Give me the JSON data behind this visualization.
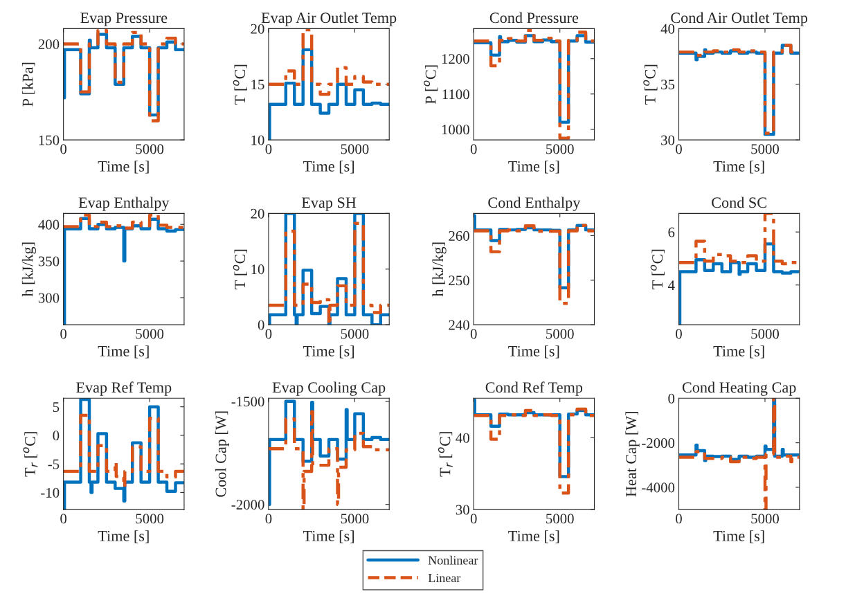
{
  "chart_data": [
    {
      "type": "step",
      "title": "Evap Pressure",
      "xlabel": "Time [s]",
      "ylabel": "P [kPa]",
      "xlim": [
        0,
        7000
      ],
      "xticks": [
        0,
        5000
      ],
      "ylim": [
        150,
        208
      ],
      "yticks": [
        150,
        200
      ],
      "grid": false,
      "series": [
        {
          "color": "#0072bd",
          "line_style": "solid",
          "x": [
            0,
            60,
            1000,
            1500,
            1560,
            2000,
            2500,
            3000,
            3500,
            4000,
            4500,
            5000,
            5500,
            6000,
            6500,
            7000
          ],
          "values": [
            172,
            197,
            174,
            202,
            198,
            205,
            198,
            179,
            198,
            204,
            198,
            163,
            198,
            201,
            197,
            197
          ]
        },
        {
          "color": "#d95319",
          "line_style": "dashed",
          "x": [
            0,
            1000,
            1500,
            2000,
            2500,
            3000,
            3500,
            4000,
            4500,
            5000,
            5500,
            6000,
            6500,
            7000
          ],
          "values": [
            200,
            175,
            200,
            207,
            200,
            180,
            200,
            206,
            200,
            160,
            200,
            203,
            200,
            200
          ]
        }
      ]
    },
    {
      "type": "step",
      "title": "Evap Air Outlet Temp",
      "xlabel": "Time [s]",
      "ylabel": "T [$^{o}$C]",
      "xlim": [
        0,
        7000
      ],
      "xticks": [
        0,
        5000
      ],
      "ylim": [
        10,
        20
      ],
      "yticks": [
        10,
        15,
        20
      ],
      "grid": false,
      "series": [
        {
          "color": "#0072bd",
          "line_style": "solid",
          "x": [
            0,
            60,
            1000,
            1500,
            2000,
            2500,
            3000,
            3500,
            4000,
            4500,
            5000,
            5500,
            6000,
            6500,
            7000
          ],
          "values": [
            10,
            13.2,
            15.1,
            13.2,
            18.1,
            13.2,
            12.4,
            13.2,
            15,
            13.2,
            14.5,
            13.2,
            13.3,
            13.2,
            13.2
          ]
        },
        {
          "color": "#d95319",
          "line_style": "dashed",
          "x": [
            0,
            1000,
            1500,
            2000,
            2500,
            3000,
            3500,
            4000,
            4500,
            5000,
            5500,
            6000,
            6500,
            7000
          ],
          "values": [
            15,
            16.2,
            15,
            19.9,
            15,
            14.1,
            15,
            16.5,
            15,
            15.7,
            15.2,
            15,
            15,
            15
          ]
        }
      ]
    },
    {
      "type": "step",
      "title": "Cond Pressure",
      "xlabel": "Time [s]",
      "ylabel": "P [$^{o}$C]",
      "xlim": [
        0,
        7000
      ],
      "xticks": [
        0,
        5000
      ],
      "ylim": [
        970,
        1285
      ],
      "yticks": [
        1000,
        1100,
        1200
      ],
      "grid": false,
      "series": [
        {
          "color": "#0072bd",
          "line_style": "solid",
          "x": [
            0,
            1000,
            1500,
            1560,
            2000,
            2500,
            3000,
            3500,
            4000,
            4500,
            5000,
            5500,
            6000,
            6500,
            7000
          ],
          "values": [
            1245,
            1210,
            1262,
            1248,
            1252,
            1247,
            1265,
            1248,
            1253,
            1248,
            1020,
            1250,
            1265,
            1247,
            1247
          ]
        },
        {
          "color": "#d95319",
          "line_style": "dashed",
          "x": [
            0,
            1000,
            1500,
            2000,
            2500,
            3000,
            3500,
            4000,
            4500,
            5000,
            5500,
            6000,
            6500,
            7000
          ],
          "values": [
            1250,
            1180,
            1252,
            1257,
            1250,
            1280,
            1252,
            1258,
            1250,
            975,
            1252,
            1275,
            1250,
            1250
          ]
        }
      ]
    },
    {
      "type": "step",
      "title": "Cond Air Outlet Temp",
      "xlabel": "Time [s]",
      "ylabel": "T [$^{o}$C]",
      "xlim": [
        0,
        7000
      ],
      "xticks": [
        0,
        5000
      ],
      "ylim": [
        30,
        40
      ],
      "yticks": [
        30,
        35,
        40
      ],
      "grid": false,
      "series": [
        {
          "color": "#0072bd",
          "line_style": "solid",
          "x": [
            0,
            1000,
            1060,
            1500,
            1560,
            2000,
            2500,
            3000,
            3500,
            4000,
            4500,
            5000,
            5500,
            6000,
            6500,
            7000
          ],
          "values": [
            37.8,
            37.2,
            37.5,
            38.1,
            37.8,
            37.9,
            37.8,
            38,
            37.8,
            37.9,
            37.8,
            30.5,
            37.8,
            38.5,
            37.8,
            37.8
          ]
        },
        {
          "color": "#d95319",
          "line_style": "dashed",
          "x": [
            0,
            1000,
            1500,
            2000,
            2500,
            3000,
            3500,
            4000,
            4500,
            5000,
            5500,
            6000,
            6500,
            7000
          ],
          "values": [
            37.9,
            37.6,
            37.9,
            38,
            37.9,
            38.1,
            37.9,
            38,
            37.9,
            30.6,
            37.9,
            38.5,
            37.9,
            37.9
          ]
        }
      ]
    },
    {
      "type": "step",
      "title": "Evap Enthalpy",
      "xlabel": "Time [s]",
      "ylabel": "h [kJ/kg]",
      "xlim": [
        0,
        7000
      ],
      "xticks": [
        0,
        5000
      ],
      "ylim": [
        263,
        415
      ],
      "yticks": [
        300,
        350,
        400
      ],
      "grid": false,
      "series": [
        {
          "color": "#0072bd",
          "line_style": "solid",
          "x": [
            0,
            60,
            1000,
            1500,
            2000,
            2500,
            3000,
            3500,
            3560,
            4000,
            4500,
            5000,
            5500,
            6000,
            6500,
            7000
          ],
          "values": [
            263,
            394,
            408,
            394,
            400,
            394,
            396,
            350,
            394,
            398,
            394,
            407,
            394,
            391,
            393,
            393
          ]
        },
        {
          "color": "#d95319",
          "line_style": "dashed",
          "x": [
            0,
            1000,
            1500,
            2000,
            2500,
            3000,
            3500,
            4000,
            4500,
            5000,
            5500,
            6000,
            6500,
            7000
          ],
          "values": [
            397,
            413,
            397,
            403,
            397,
            398,
            395,
            403,
            398,
            413,
            399,
            396,
            396,
            396
          ]
        }
      ]
    },
    {
      "type": "step",
      "title": "Evap SH",
      "xlabel": "Time [s]",
      "ylabel": "T [$^{o}$C]",
      "xlim": [
        0,
        7000
      ],
      "xticks": [
        0,
        5000
      ],
      "ylim": [
        0,
        20
      ],
      "yticks": [
        0,
        10,
        20
      ],
      "grid": false,
      "series": [
        {
          "color": "#0072bd",
          "line_style": "solid",
          "x": [
            0,
            60,
            1000,
            1500,
            1600,
            1660,
            2000,
            2500,
            3000,
            3500,
            3560,
            4000,
            4500,
            5000,
            5500,
            6000,
            6500,
            7000
          ],
          "values": [
            0,
            1.8,
            20,
            1.8,
            0,
            1.8,
            9.8,
            2,
            3.3,
            0,
            1.8,
            8.3,
            1.8,
            20,
            1.8,
            0,
            1.8,
            1.8
          ]
        },
        {
          "color": "#d95319",
          "line_style": "dashed",
          "x": [
            0,
            1000,
            1500,
            2000,
            2500,
            3000,
            3500,
            3560,
            4000,
            4500,
            5000,
            5500,
            6000,
            6500,
            7000
          ],
          "values": [
            3.5,
            16.8,
            3.5,
            7.3,
            4,
            4.5,
            0,
            3.5,
            7,
            3.5,
            18.2,
            3.5,
            2.2,
            3.5,
            3.5
          ]
        }
      ]
    },
    {
      "type": "step",
      "title": "Cond Enthalpy",
      "xlabel": "Time [s]",
      "ylabel": "h [kJ/kg]",
      "xlim": [
        0,
        7000
      ],
      "xticks": [
        0,
        5000
      ],
      "ylim": [
        240,
        265
      ],
      "yticks": [
        240,
        250,
        260
      ],
      "grid": false,
      "series": [
        {
          "color": "#0072bd",
          "line_style": "solid",
          "x": [
            0,
            60,
            1000,
            1500,
            2000,
            2500,
            3000,
            3500,
            4000,
            4500,
            5000,
            5500,
            6000,
            6500,
            7000
          ],
          "values": [
            264.5,
            261.3,
            258.9,
            261.4,
            261.3,
            261.4,
            261.8,
            261.3,
            261.3,
            261.2,
            248.3,
            261.3,
            262.3,
            261.3,
            261.3
          ]
        },
        {
          "color": "#d95319",
          "line_style": "dashed",
          "x": [
            0,
            1000,
            1500,
            2000,
            2500,
            3000,
            3500,
            4000,
            4500,
            5000,
            5500,
            6000,
            6500,
            7000
          ],
          "values": [
            261.1,
            256.4,
            261.1,
            261.3,
            261.1,
            262.2,
            261,
            261,
            261,
            244.8,
            261.1,
            262.3,
            261.1,
            261.1
          ]
        }
      ]
    },
    {
      "type": "step",
      "title": "Cond SC",
      "xlabel": "Time [s]",
      "ylabel": "T [$^{o}$C]",
      "xlim": [
        0,
        7000
      ],
      "xticks": [
        0,
        5000
      ],
      "ylim": [
        2.5,
        6.7
      ],
      "yticks": [
        4,
        6
      ],
      "grid": false,
      "series": [
        {
          "color": "#0072bd",
          "line_style": "solid",
          "x": [
            0,
            60,
            1000,
            1500,
            2000,
            2500,
            3000,
            3500,
            3560,
            4000,
            4500,
            5000,
            5500,
            6000,
            6500,
            7000
          ],
          "values": [
            2.5,
            4.5,
            4.95,
            4.55,
            4.8,
            4.5,
            4.85,
            4.4,
            4.5,
            4.8,
            4.55,
            5.55,
            4.5,
            4.45,
            4.5,
            4.5
          ]
        },
        {
          "color": "#d95319",
          "line_style": "dashed",
          "x": [
            0,
            1000,
            1500,
            2000,
            2500,
            3000,
            3500,
            4000,
            4500,
            5000,
            5500,
            6000,
            6500,
            7000
          ],
          "values": [
            4.85,
            5.65,
            4.9,
            5.15,
            5.1,
            4.9,
            4.85,
            5.1,
            4.9,
            6.7,
            4.9,
            4.8,
            4.85,
            4.85
          ]
        }
      ]
    },
    {
      "type": "step",
      "title": "Evap Ref Temp",
      "xlabel": "Time [s]",
      "ylabel": "T$_{r}$ [$^{o}$C]",
      "xlim": [
        0,
        7000
      ],
      "xticks": [
        0,
        5000
      ],
      "ylim": [
        -13,
        6.5
      ],
      "yticks": [
        -10,
        -5,
        0,
        5
      ],
      "grid": false,
      "series": [
        {
          "color": "#0072bd",
          "line_style": "solid",
          "x": [
            0,
            60,
            1000,
            1500,
            1600,
            1660,
            2000,
            2500,
            3000,
            3500,
            3560,
            4000,
            4500,
            5000,
            5500,
            6000,
            6500,
            7000
          ],
          "values": [
            -13,
            -8.2,
            6.3,
            -8.2,
            -10,
            -8.2,
            0.3,
            -8.2,
            -9.3,
            -11.5,
            -8.2,
            -1.3,
            -8.2,
            5,
            -8.2,
            -9.8,
            -8.3,
            -8.3
          ]
        },
        {
          "color": "#d95319",
          "line_style": "dashed",
          "x": [
            0,
            1000,
            1500,
            2000,
            2500,
            3000,
            3060,
            3500,
            3560,
            4000,
            4500,
            5000,
            5500,
            6000,
            6500,
            7000
          ],
          "values": [
            -6.3,
            3.5,
            -6.3,
            -1.8,
            -6.3,
            -4.7,
            -7.2,
            -9,
            -6.3,
            -2,
            -6.3,
            3,
            -6.3,
            -7.3,
            -6.3,
            -6.3
          ]
        }
      ]
    },
    {
      "type": "step",
      "title": "Evap Cooling Cap",
      "xlabel": "Time [s]",
      "ylabel": "Cool Cap [W]",
      "xlim": [
        0,
        7000
      ],
      "xticks": [
        0,
        5000
      ],
      "ylim": [
        -2025,
        -1485
      ],
      "yticks": [
        -2000,
        -1500
      ],
      "grid": false,
      "legend": "bottom",
      "series": [
        {
          "name": "Nonlinear",
          "color": "#0072bd",
          "line_style": "solid",
          "x": [
            0,
            60,
            1000,
            1500,
            2000,
            2500,
            2560,
            3000,
            3500,
            4000,
            4500,
            4560,
            5000,
            5500,
            6000,
            6500,
            7000
          ],
          "values": [
            -2000,
            -1685,
            -1500,
            -1685,
            -1790,
            -1505,
            -1685,
            -1765,
            -1685,
            -1780,
            -1540,
            -1685,
            -1560,
            -1685,
            -1675,
            -1685,
            -1685
          ]
        },
        {
          "name": "Linear",
          "color": "#d95319",
          "line_style": "dashed",
          "x": [
            0,
            1000,
            1500,
            2000,
            2060,
            2500,
            2560,
            3000,
            3500,
            4000,
            4060,
            4500,
            5000,
            5500,
            6000,
            7000
          ],
          "values": [
            -1730,
            -1585,
            -1730,
            -2025,
            -1840,
            -1550,
            -1810,
            -1810,
            -1730,
            -2000,
            -1820,
            -1735,
            -1655,
            -1720,
            -1735,
            -1735
          ]
        }
      ]
    },
    {
      "type": "step",
      "title": "Cond Ref Temp",
      "xlabel": "Time [s]",
      "ylabel": "T$_{r}$ [$^{o}$C]",
      "xlim": [
        0,
        7000
      ],
      "xticks": [
        0,
        5000
      ],
      "ylim": [
        30,
        45.5
      ],
      "yticks": [
        30,
        40
      ],
      "grid": false,
      "series": [
        {
          "color": "#0072bd",
          "line_style": "solid",
          "x": [
            0,
            60,
            1000,
            1500,
            2000,
            3000,
            3500,
            5000,
            5500,
            6000,
            6500,
            7000
          ],
          "values": [
            45.3,
            43.2,
            41.6,
            43.3,
            43.2,
            43.5,
            43.2,
            34.6,
            43.3,
            43.8,
            43.2,
            43.2
          ]
        },
        {
          "color": "#d95319",
          "line_style": "dashed",
          "x": [
            0,
            1000,
            1500,
            2000,
            2500,
            3000,
            3500,
            4000,
            4500,
            5000,
            5500,
            6000,
            6500,
            7000
          ],
          "values": [
            43.1,
            39.8,
            43.1,
            43.2,
            43.1,
            43.8,
            43.1,
            43.2,
            43.1,
            32.3,
            43.2,
            44,
            43.1,
            43.1
          ]
        }
      ]
    },
    {
      "type": "step",
      "title": "Cond Heating Cap",
      "xlabel": "Time [s]",
      "ylabel": "Heat Cap [W]",
      "xlim": [
        0,
        7000
      ],
      "xticks": [
        0,
        5000
      ],
      "ylim": [
        -5000,
        0
      ],
      "yticks": [
        -4000,
        -2000,
        0
      ],
      "grid": false,
      "series": [
        {
          "color": "#0072bd",
          "line_style": "solid",
          "x": [
            0,
            1000,
            1060,
            1500,
            1560,
            2000,
            2500,
            3000,
            3500,
            4000,
            4500,
            5000,
            5060,
            5500,
            5560,
            6000,
            6060,
            7000
          ],
          "values": [
            -2550,
            -2100,
            -2350,
            -2800,
            -2600,
            -2620,
            -2600,
            -2750,
            -2600,
            -2650,
            -2600,
            -2150,
            -2300,
            0,
            -2600,
            -2300,
            -2550,
            -2550
          ]
        },
        {
          "color": "#d95319",
          "line_style": "dashed",
          "x": [
            0,
            1000,
            1500,
            2000,
            2500,
            3000,
            3500,
            4000,
            4500,
            5000,
            5060,
            5500,
            5560,
            6000,
            6500,
            6560,
            7000
          ],
          "values": [
            -2650,
            -2400,
            -2700,
            -2700,
            -2650,
            -2850,
            -2650,
            -2700,
            -2650,
            -5000,
            -2500,
            0,
            -2650,
            -2600,
            -2850,
            -2650,
            -2650
          ]
        }
      ]
    }
  ]
}
